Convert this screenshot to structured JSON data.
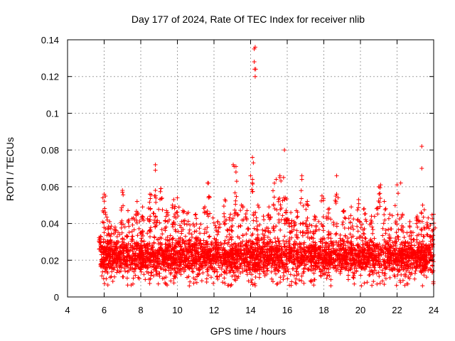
{
  "chart_data": {
    "type": "scatter",
    "title": "Day 177 of 2024, Rate Of TEC Index for receiver nlib",
    "xlabel": "GPS time / hours",
    "ylabel": "ROTI / TECUs",
    "xlim": [
      4,
      24
    ],
    "ylim": [
      0,
      0.14
    ],
    "xticks": [
      4,
      6,
      8,
      10,
      12,
      14,
      16,
      18,
      20,
      22,
      24
    ],
    "xtick_labels": [
      "4",
      "6",
      "8",
      "10",
      "12",
      "14",
      "16",
      "18",
      "20",
      "22",
      "24"
    ],
    "yticks": [
      0,
      0.02,
      0.04,
      0.06,
      0.08,
      0.1,
      0.12,
      0.14
    ],
    "ytick_labels": [
      "0",
      "0.02",
      "0.04",
      "0.06",
      "0.08",
      "0.1",
      "0.12",
      "0.14"
    ],
    "grid": true,
    "marker": "+",
    "color": "#ff0000",
    "dense_band": {
      "x_start": 5.8,
      "x_end": 24.0,
      "y_baseline": 0.02,
      "y_min": 0.006,
      "y_typical_max": 0.04
    },
    "envelope": [
      [
        5.8,
        0.033
      ],
      [
        6.0,
        0.056
      ],
      [
        6.3,
        0.041
      ],
      [
        6.6,
        0.038
      ],
      [
        7.0,
        0.057
      ],
      [
        7.3,
        0.047
      ],
      [
        7.6,
        0.043
      ],
      [
        7.8,
        0.052
      ],
      [
        8.1,
        0.049
      ],
      [
        8.5,
        0.056
      ],
      [
        8.8,
        0.058
      ],
      [
        9.1,
        0.059
      ],
      [
        9.4,
        0.047
      ],
      [
        9.8,
        0.053
      ],
      [
        10.0,
        0.054
      ],
      [
        10.3,
        0.047
      ],
      [
        10.6,
        0.046
      ],
      [
        11.0,
        0.045
      ],
      [
        11.5,
        0.049
      ],
      [
        11.7,
        0.062
      ],
      [
        12.2,
        0.041
      ],
      [
        12.6,
        0.053
      ],
      [
        12.9,
        0.045
      ],
      [
        13.2,
        0.071
      ],
      [
        13.5,
        0.05
      ],
      [
        13.8,
        0.047
      ],
      [
        14.1,
        0.064
      ],
      [
        14.4,
        0.05
      ],
      [
        14.7,
        0.044
      ],
      [
        15.0,
        0.049
      ],
      [
        15.3,
        0.062
      ],
      [
        15.6,
        0.065
      ],
      [
        15.9,
        0.054
      ],
      [
        16.2,
        0.046
      ],
      [
        16.5,
        0.047
      ],
      [
        16.8,
        0.064
      ],
      [
        17.1,
        0.052
      ],
      [
        17.5,
        0.044
      ],
      [
        17.9,
        0.055
      ],
      [
        18.3,
        0.048
      ],
      [
        18.7,
        0.056
      ],
      [
        19.1,
        0.047
      ],
      [
        19.5,
        0.049
      ],
      [
        19.9,
        0.053
      ],
      [
        20.2,
        0.048
      ],
      [
        20.6,
        0.044
      ],
      [
        21.0,
        0.06
      ],
      [
        21.3,
        0.052
      ],
      [
        21.6,
        0.045
      ],
      [
        22.0,
        0.061
      ],
      [
        22.3,
        0.045
      ],
      [
        22.7,
        0.041
      ],
      [
        23.1,
        0.044
      ],
      [
        23.4,
        0.05
      ],
      [
        23.7,
        0.043
      ],
      [
        24.0,
        0.045
      ]
    ],
    "outliers": [
      [
        14.2,
        0.135
      ],
      [
        14.25,
        0.136
      ],
      [
        14.2,
        0.128
      ],
      [
        14.22,
        0.124
      ],
      [
        14.28,
        0.124
      ],
      [
        14.25,
        0.12
      ],
      [
        15.85,
        0.08
      ],
      [
        23.35,
        0.082
      ],
      [
        23.35,
        0.07
      ],
      [
        8.8,
        0.072
      ],
      [
        8.8,
        0.069
      ],
      [
        13.05,
        0.072
      ],
      [
        13.1,
        0.071
      ],
      [
        14.1,
        0.076
      ],
      [
        14.15,
        0.073
      ],
      [
        14.0,
        0.066
      ],
      [
        11.65,
        0.062
      ],
      [
        18.7,
        0.066
      ],
      [
        16.8,
        0.066
      ],
      [
        22.2,
        0.062
      ],
      [
        21.1,
        0.061
      ],
      [
        15.4,
        0.064
      ],
      [
        15.6,
        0.066
      ],
      [
        15.8,
        0.065
      ],
      [
        7.0,
        0.058
      ],
      [
        9.1,
        0.059
      ],
      [
        14.1,
        0.062
      ],
      [
        13.2,
        0.068
      ]
    ]
  }
}
